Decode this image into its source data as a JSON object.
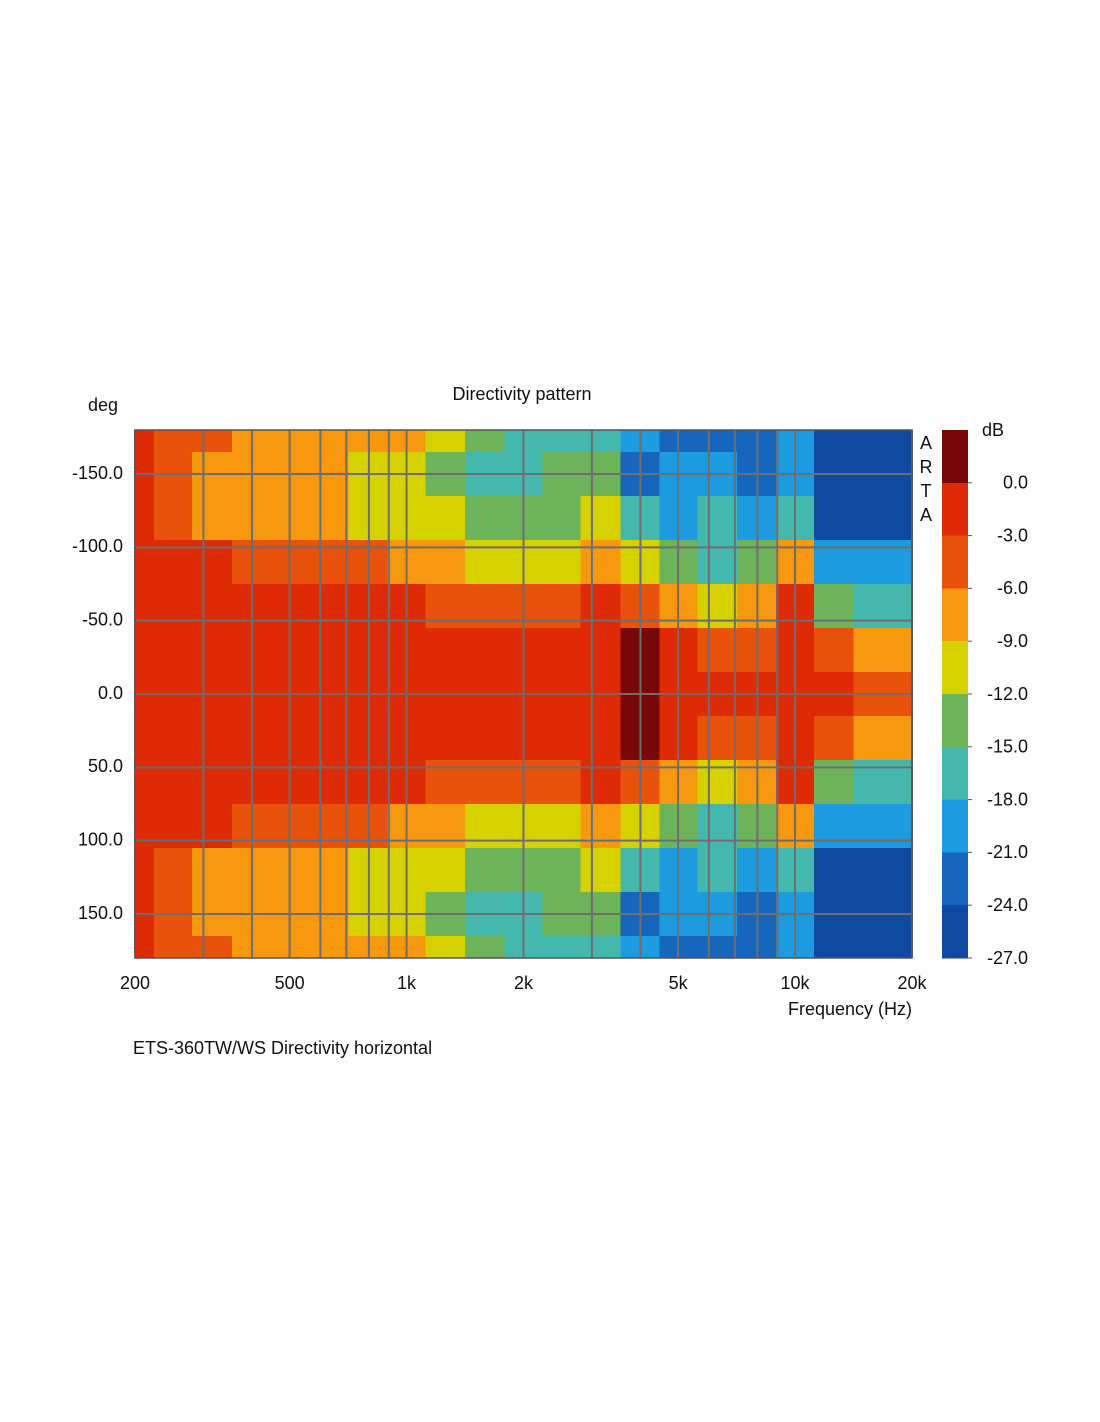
{
  "chart_data": {
    "type": "contour",
    "title": "Directivity pattern",
    "y_label": "deg",
    "x_label": "Frequency (Hz)",
    "colorbar_label": "dB",
    "watermark": "ARTA",
    "caption": "ETS-360TW/WS  Directivity horizontal",
    "x_scale": "log",
    "xlim": [
      200,
      20000
    ],
    "xticks": [
      200,
      500,
      {
        "value": 1000,
        "label": "1k"
      },
      {
        "value": 2000,
        "label": "2k"
      },
      {
        "value": 5000,
        "label": "5k"
      },
      {
        "value": 10000,
        "label": "10k"
      },
      {
        "value": 20000,
        "label": "20k"
      }
    ],
    "x_minor_ticks": [
      300,
      400,
      600,
      700,
      800,
      900,
      3000,
      4000,
      6000,
      7000,
      8000,
      9000
    ],
    "ylim": [
      -180,
      180
    ],
    "yticks": [
      {
        "value": -150,
        "label": "-150.0"
      },
      {
        "value": -100,
        "label": "-100.0"
      },
      {
        "value": -50,
        "label": "-50.0"
      },
      {
        "value": 0,
        "label": "0.0"
      },
      {
        "value": 50,
        "label": "50.0"
      },
      {
        "value": 100,
        "label": "100.0"
      },
      {
        "value": 150,
        "label": "150.0"
      }
    ],
    "y_inverted": true,
    "grid": true,
    "zlim": [
      -27,
      3
    ],
    "zticks": [
      {
        "value": 0,
        "label": "0.0"
      },
      {
        "value": -3,
        "label": "-3.0"
      },
      {
        "value": -6,
        "label": "-6.0"
      },
      {
        "value": -9,
        "label": "-9.0"
      },
      {
        "value": -12,
        "label": "-12.0"
      },
      {
        "value": -15,
        "label": "-15.0"
      },
      {
        "value": -18,
        "label": "-18.0"
      },
      {
        "value": -21,
        "label": "-21.0"
      },
      {
        "value": -24,
        "label": "-24.0"
      },
      {
        "value": -27,
        "label": "-27.0"
      }
    ],
    "level_step": 3,
    "colors": [
      "#780808",
      "#de2a05",
      "#e8520a",
      "#f7980f",
      "#d6d200",
      "#6db35a",
      "#45b8ae",
      "#1c9be0",
      "#1566bc",
      "#0f4aa0",
      "#1c2f88"
    ],
    "x": [
      200,
      250,
      315,
      400,
      500,
      630,
      800,
      1000,
      1250,
      1600,
      2000,
      2500,
      3150,
      4000,
      5000,
      6300,
      8000,
      10000,
      12500,
      16000,
      20000
    ],
    "y": [
      -180,
      -150,
      -120,
      -90,
      -60,
      -30,
      0,
      30,
      60,
      90,
      120,
      150,
      180
    ],
    "z": [
      [
        -2,
        -4,
        -5,
        -6,
        -6.5,
        -7,
        -8,
        -8.5,
        -10,
        -13,
        -15,
        -16,
        -15,
        -19,
        -22,
        -21,
        -22,
        -18,
        -25.5,
        -25.5,
        -25
      ],
      [
        -2,
        -4,
        -7,
        -8,
        -8,
        -8.5,
        -10,
        -11,
        -13,
        -17,
        -16,
        -14,
        -13,
        -22,
        -20,
        -18,
        -22,
        -18,
        -25.5,
        -25.5,
        -25
      ],
      [
        -2,
        -3.5,
        -6.5,
        -7.5,
        -7.5,
        -8,
        -9.5,
        -10.5,
        -11,
        -12.5,
        -13.5,
        -12,
        -11,
        -15,
        -19,
        -17,
        -20,
        -15,
        -25,
        -25,
        -24
      ],
      [
        -1.5,
        -2,
        -2.5,
        -4,
        -4.5,
        -4.5,
        -5,
        -6.5,
        -8,
        -9.5,
        -10,
        -9,
        -8,
        -11,
        -14,
        -16,
        -12,
        -6,
        -20,
        -20,
        -19
      ],
      [
        -1.5,
        -1.5,
        -1.5,
        -1.5,
        -1.5,
        -1.5,
        -2,
        -2,
        -3.5,
        -4,
        -4.5,
        -4,
        -2.5,
        -4,
        -7,
        -10,
        -8,
        -2,
        -12,
        -17,
        -15
      ],
      [
        -1.5,
        -1.5,
        -1.5,
        -1.5,
        -1.5,
        -1.5,
        -1.5,
        -1.5,
        -1.5,
        -1.5,
        -1.5,
        -2,
        -2,
        0.5,
        -2.5,
        -3.5,
        -3,
        -1,
        -4,
        -6,
        -7
      ],
      [
        -1.5,
        -1.5,
        -1.5,
        -1.5,
        -1.5,
        -1.5,
        -1.5,
        -1.5,
        -1.5,
        -1.5,
        -1.5,
        -1.5,
        -1.5,
        1,
        -1,
        -2,
        -2,
        -1.5,
        -2,
        -3.5,
        -4
      ],
      [
        -1.5,
        -1.5,
        -1.5,
        -1.5,
        -1.5,
        -1.5,
        -1.5,
        -1.5,
        -1.5,
        -1.5,
        -1.5,
        -2,
        -2,
        0.5,
        -2.5,
        -3.5,
        -3,
        -1,
        -4,
        -6,
        -7
      ],
      [
        -1.5,
        -1.5,
        -1.5,
        -1.5,
        -1.5,
        -1.5,
        -2,
        -2,
        -3.5,
        -4,
        -4.5,
        -4,
        -2.5,
        -4,
        -7,
        -10,
        -8,
        -2,
        -12,
        -17,
        -15
      ],
      [
        -1.5,
        -2,
        -2.5,
        -4,
        -4.5,
        -4.5,
        -5,
        -6.5,
        -8,
        -9.5,
        -10,
        -9,
        -8,
        -11,
        -14,
        -16,
        -12,
        -6,
        -20,
        -20,
        -19
      ],
      [
        -2,
        -3.5,
        -6.5,
        -7.5,
        -7.5,
        -8,
        -9.5,
        -10.5,
        -11,
        -12.5,
        -13.5,
        -12,
        -11,
        -15,
        -19,
        -17,
        -20,
        -15,
        -25,
        -25,
        -24
      ],
      [
        -2,
        -4,
        -7,
        -8,
        -8,
        -8.5,
        -10,
        -11,
        -13,
        -17,
        -16,
        -14,
        -13,
        -22,
        -20,
        -18,
        -22,
        -18,
        -25.5,
        -25.5,
        -25
      ],
      [
        -2,
        -4,
        -5,
        -6,
        -6.5,
        -7,
        -8,
        -8.5,
        -10,
        -13,
        -15,
        -16,
        -15,
        -19,
        -22,
        -21,
        -22,
        -18,
        -25.5,
        -25.5,
        -25
      ]
    ]
  }
}
